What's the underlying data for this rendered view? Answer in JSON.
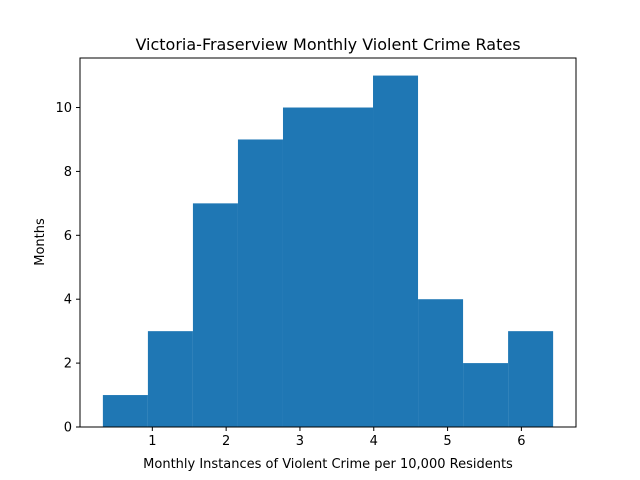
{
  "chart_data": {
    "type": "bar",
    "subtype": "histogram",
    "title": "Victoria-Fraserview Monthly Violent Crime Rates",
    "xlabel": "Monthly Instances of Violent Crime per 10,000 Residents",
    "ylabel": "Months",
    "bin_edges": [
      0.33,
      0.94,
      1.55,
      2.16,
      2.77,
      3.38,
      3.99,
      4.6,
      5.21,
      5.82,
      6.43
    ],
    "counts": [
      1,
      3,
      7,
      9,
      10,
      10,
      11,
      4,
      2,
      3
    ],
    "xlim": [
      0.02,
      6.74
    ],
    "ylim": [
      0,
      11.55
    ],
    "xticks": [
      1,
      2,
      3,
      4,
      5,
      6
    ],
    "yticks": [
      0,
      2,
      4,
      6,
      8,
      10
    ],
    "bar_color": "#1f77b4",
    "grid": false,
    "legend": "none"
  }
}
